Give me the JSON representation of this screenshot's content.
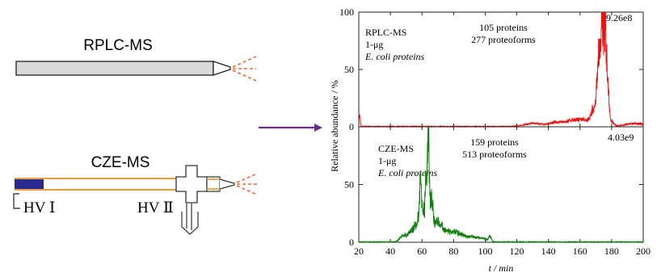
{
  "schematic": {
    "rplc_title": "RPLC-MS",
    "cze_title": "CZE-MS",
    "hv1_label": "HV Ⅰ",
    "hv2_label": "HV Ⅱ"
  },
  "colors": {
    "rplc_trace": "#e41414",
    "cze_trace": "#0e7d0e",
    "capillary": "#e8a348",
    "spray": "#e86a2e",
    "arrow": "#6a2d8e",
    "buffer_vial": "#2a2a8c"
  },
  "chart_data": [
    {
      "type": "line",
      "name": "rplc",
      "xlabel": "t / min",
      "ylabel": "Relative abundance / %",
      "xlim": [
        20,
        200
      ],
      "ylim": [
        0,
        100
      ],
      "xticks": [
        20,
        40,
        60,
        80,
        100,
        120,
        140,
        160,
        180,
        200
      ],
      "yticks": [
        0,
        50,
        100
      ],
      "sample_lines": [
        "RPLC-MS",
        "1-μg",
        "E. coli proteins"
      ],
      "stats": [
        "105 proteins",
        "277 proteoforms"
      ],
      "intensity_label": "9.26e8",
      "peaks": [
        {
          "x": 20.5,
          "y": 12,
          "w": 0.4
        },
        {
          "x": 130,
          "y": 3,
          "w": 5
        },
        {
          "x": 145,
          "y": 4,
          "w": 5
        },
        {
          "x": 155,
          "y": 5,
          "w": 4
        },
        {
          "x": 162,
          "y": 6,
          "w": 3
        },
        {
          "x": 168,
          "y": 14,
          "w": 1.6
        },
        {
          "x": 172,
          "y": 55,
          "w": 1.4
        },
        {
          "x": 175,
          "y": 100,
          "w": 1.6
        },
        {
          "x": 177,
          "y": 30,
          "w": 1.0
        },
        {
          "x": 180,
          "y": 4,
          "w": 1.5
        },
        {
          "x": 195,
          "y": 3,
          "w": 6
        }
      ]
    },
    {
      "type": "line",
      "name": "cze",
      "xlabel": "t / min",
      "ylabel": "Relative abundance / %",
      "xlim": [
        20,
        200
      ],
      "ylim": [
        0,
        100
      ],
      "xticks": [
        20,
        40,
        60,
        80,
        100,
        120,
        140,
        160,
        180,
        200
      ],
      "yticks": [
        0,
        50
      ],
      "sample_lines": [
        "CZE-MS",
        "1-μg",
        "E. coli proteins"
      ],
      "stats": [
        "159 proteins",
        "513 proteoforms"
      ],
      "intensity_label": "4.03e9",
      "peaks": [
        {
          "x": 48,
          "y": 6,
          "w": 2
        },
        {
          "x": 53,
          "y": 9,
          "w": 2
        },
        {
          "x": 57,
          "y": 15,
          "w": 2
        },
        {
          "x": 59,
          "y": 40,
          "w": 0.8
        },
        {
          "x": 61,
          "y": 25,
          "w": 1.2
        },
        {
          "x": 62.5,
          "y": 45,
          "w": 0.6
        },
        {
          "x": 64,
          "y": 100,
          "w": 0.6
        },
        {
          "x": 66,
          "y": 35,
          "w": 1.2
        },
        {
          "x": 70,
          "y": 18,
          "w": 2
        },
        {
          "x": 75,
          "y": 10,
          "w": 3
        },
        {
          "x": 82,
          "y": 8,
          "w": 3
        },
        {
          "x": 90,
          "y": 5,
          "w": 4
        },
        {
          "x": 98,
          "y": 3,
          "w": 3
        },
        {
          "x": 103,
          "y": 5,
          "w": 0.8
        }
      ]
    }
  ]
}
